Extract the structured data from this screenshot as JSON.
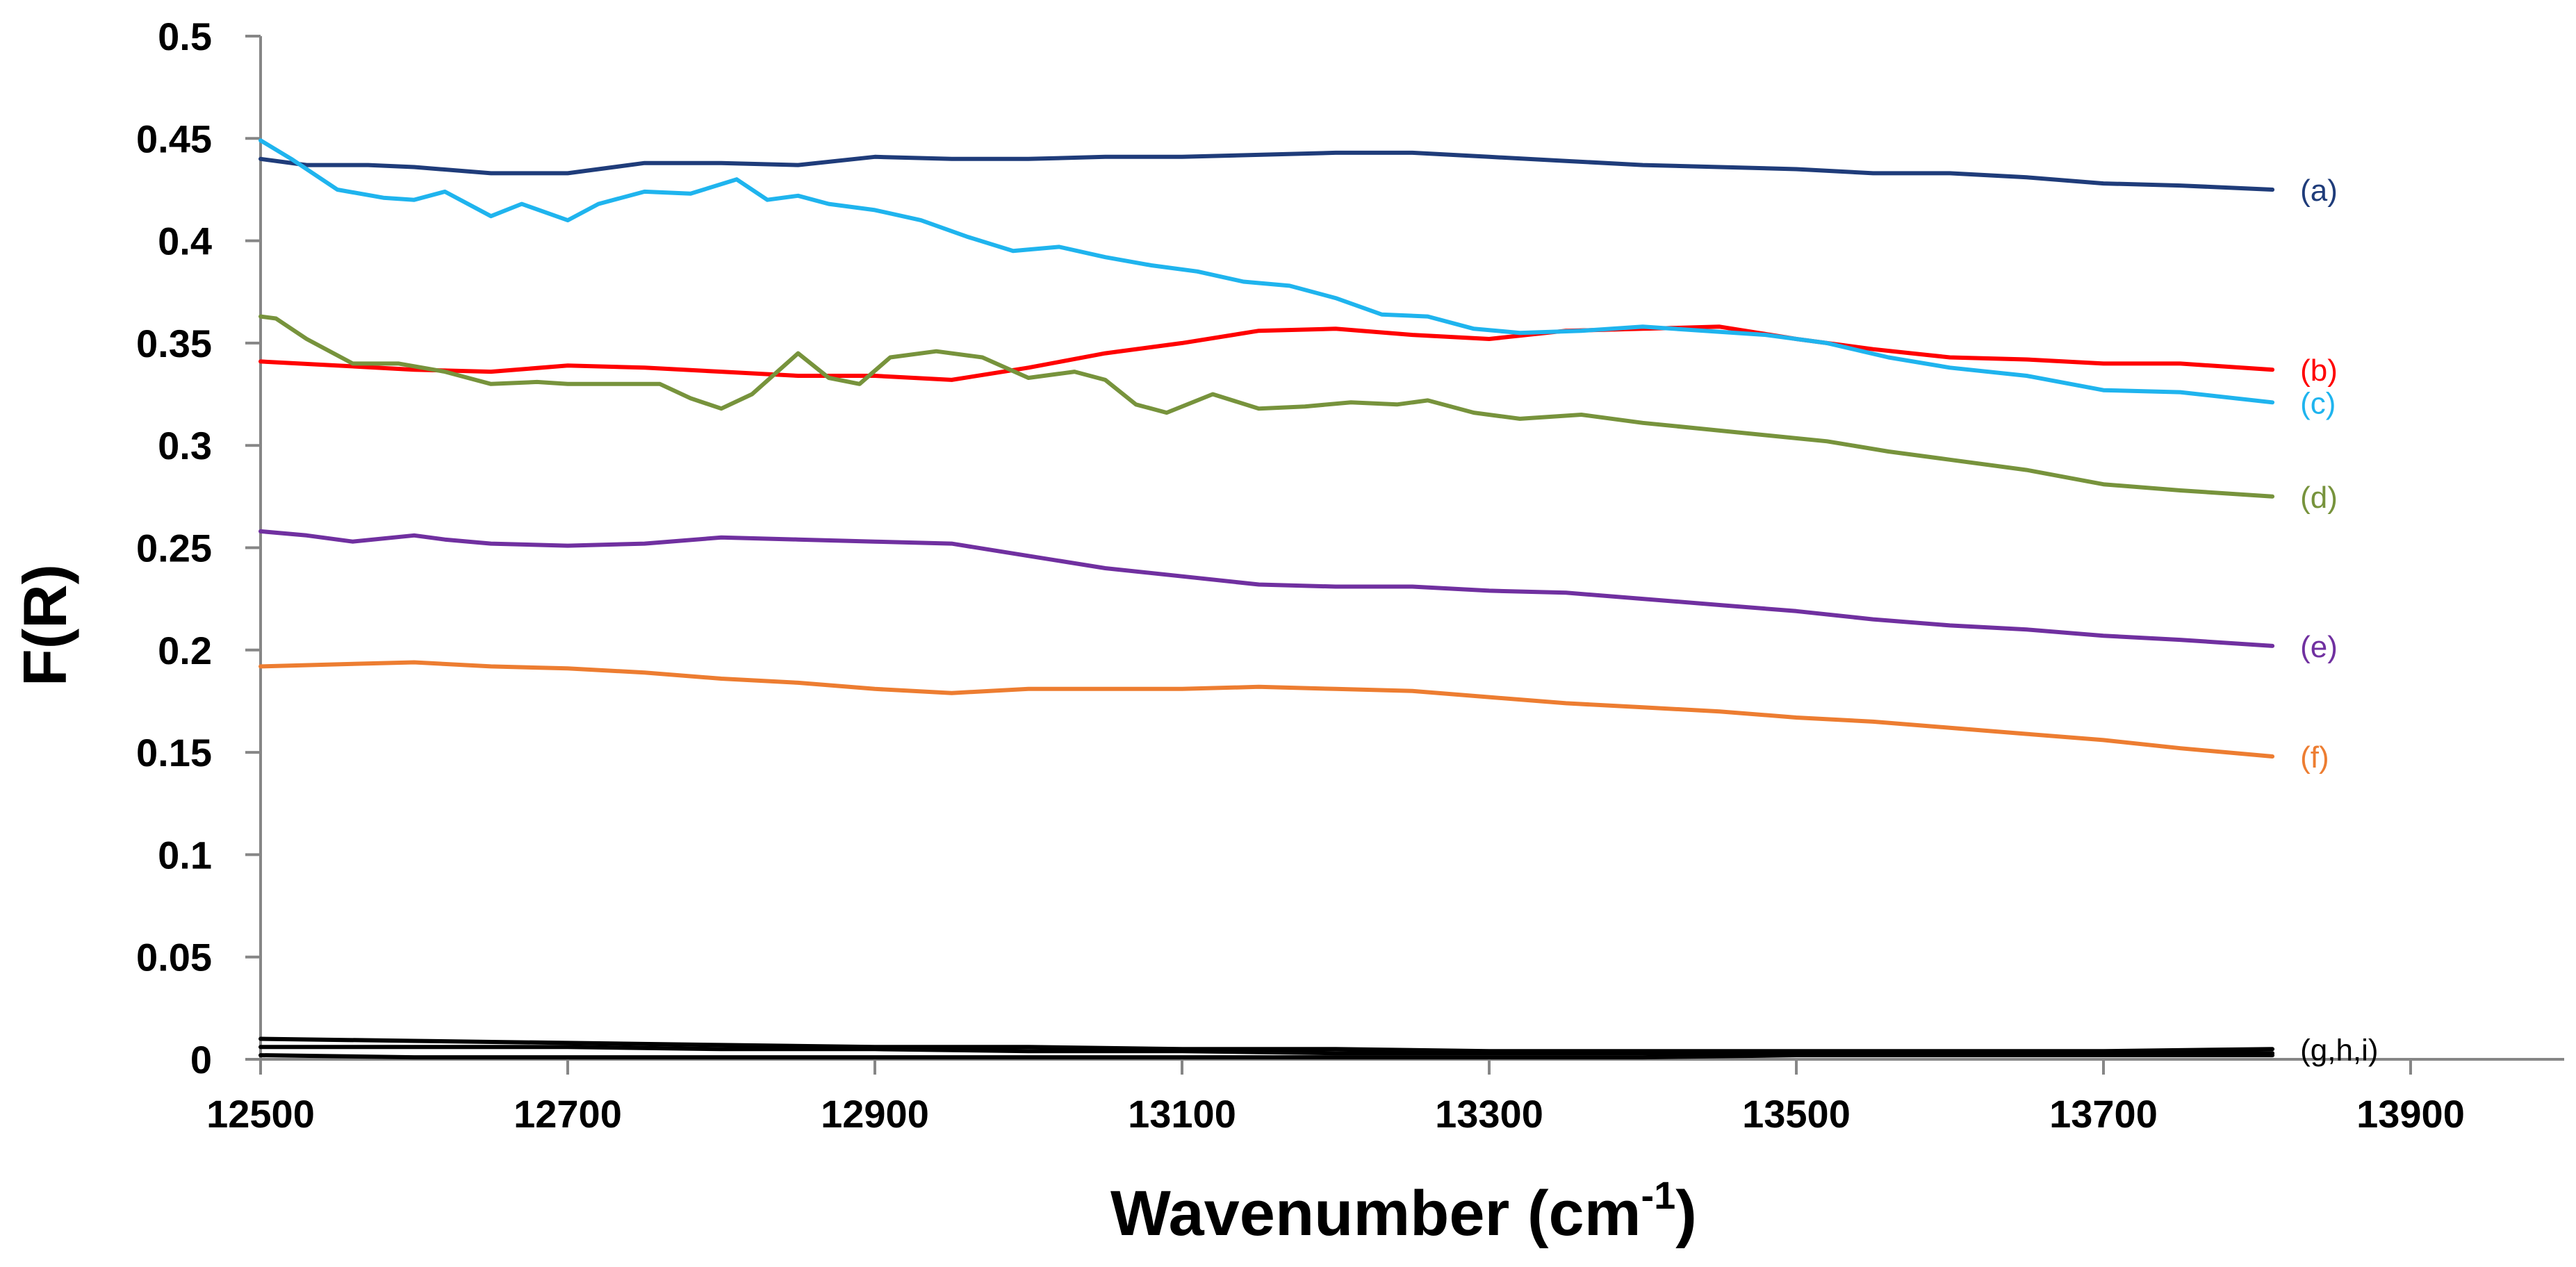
{
  "chart_data": {
    "type": "line",
    "title": "",
    "xlabel": "Wavenumber (cm",
    "xlabel_sup": "-1",
    "xlabel_close": ")",
    "ylabel": "F(R)",
    "xlim": [
      12500,
      14000
    ],
    "ylim": [
      0,
      0.5
    ],
    "xticks": [
      12500,
      12700,
      12900,
      13100,
      13300,
      13500,
      13700,
      13900
    ],
    "yticks": [
      0,
      0.05,
      0.1,
      0.15,
      0.2,
      0.25,
      0.3,
      0.35,
      0.4,
      0.45,
      0.5
    ],
    "grid": false,
    "legend": "inline-right",
    "series": [
      {
        "name": "(a)",
        "color": "#1f3c7a",
        "x": [
          12500,
          12530,
          12570,
          12600,
          12650,
          12700,
          12750,
          12800,
          12850,
          12900,
          12950,
          13000,
          13050,
          13100,
          13150,
          13200,
          13250,
          13300,
          13350,
          13400,
          13450,
          13500,
          13550,
          13600,
          13650,
          13700,
          13750,
          13810
        ],
        "y": [
          0.44,
          0.437,
          0.437,
          0.436,
          0.433,
          0.433,
          0.438,
          0.438,
          0.437,
          0.441,
          0.44,
          0.44,
          0.441,
          0.441,
          0.442,
          0.443,
          0.443,
          0.441,
          0.439,
          0.437,
          0.436,
          0.435,
          0.433,
          0.433,
          0.431,
          0.428,
          0.427,
          0.425
        ]
      },
      {
        "name": "(b)",
        "color": "#ff0000",
        "x": [
          12500,
          12550,
          12600,
          12650,
          12700,
          12750,
          12800,
          12850,
          12900,
          12950,
          13000,
          13050,
          13100,
          13150,
          13200,
          13250,
          13300,
          13350,
          13400,
          13450,
          13500,
          13550,
          13600,
          13650,
          13700,
          13750,
          13810
        ],
        "y": [
          0.341,
          0.339,
          0.337,
          0.336,
          0.339,
          0.338,
          0.336,
          0.334,
          0.334,
          0.332,
          0.338,
          0.345,
          0.35,
          0.356,
          0.357,
          0.354,
          0.352,
          0.356,
          0.357,
          0.358,
          0.352,
          0.347,
          0.343,
          0.342,
          0.34,
          0.34,
          0.337
        ]
      },
      {
        "name": "(c)",
        "color": "#1fb4ee",
        "x": [
          12500,
          12520,
          12550,
          12580,
          12600,
          12620,
          12650,
          12670,
          12700,
          12720,
          12750,
          12780,
          12810,
          12830,
          12850,
          12870,
          12900,
          12930,
          12960,
          12990,
          13020,
          13050,
          13080,
          13110,
          13140,
          13170,
          13200,
          13230,
          13260,
          13290,
          13320,
          13360,
          13400,
          13440,
          13480,
          13520,
          13560,
          13600,
          13650,
          13700,
          13750,
          13810
        ],
        "y": [
          0.449,
          0.44,
          0.425,
          0.421,
          0.42,
          0.424,
          0.412,
          0.418,
          0.41,
          0.418,
          0.424,
          0.423,
          0.43,
          0.42,
          0.422,
          0.418,
          0.415,
          0.41,
          0.402,
          0.395,
          0.397,
          0.392,
          0.388,
          0.385,
          0.38,
          0.378,
          0.372,
          0.364,
          0.363,
          0.357,
          0.355,
          0.356,
          0.358,
          0.356,
          0.354,
          0.35,
          0.343,
          0.338,
          0.334,
          0.327,
          0.326,
          0.321
        ]
      },
      {
        "name": "(d)",
        "color": "#77933c",
        "x": [
          12500,
          12510,
          12530,
          12560,
          12590,
          12620,
          12650,
          12680,
          12700,
          12730,
          12760,
          12780,
          12800,
          12820,
          12850,
          12870,
          12890,
          12910,
          12940,
          12970,
          13000,
          13030,
          13050,
          13070,
          13090,
          13120,
          13150,
          13180,
          13210,
          13240,
          13260,
          13290,
          13320,
          13360,
          13400,
          13440,
          13480,
          13520,
          13560,
          13600,
          13650,
          13700,
          13750,
          13810
        ],
        "y": [
          0.363,
          0.362,
          0.352,
          0.34,
          0.34,
          0.336,
          0.33,
          0.331,
          0.33,
          0.33,
          0.33,
          0.323,
          0.318,
          0.325,
          0.345,
          0.333,
          0.33,
          0.343,
          0.346,
          0.343,
          0.333,
          0.336,
          0.332,
          0.32,
          0.316,
          0.325,
          0.318,
          0.319,
          0.321,
          0.32,
          0.322,
          0.316,
          0.313,
          0.315,
          0.311,
          0.308,
          0.305,
          0.302,
          0.297,
          0.293,
          0.288,
          0.281,
          0.278,
          0.275
        ]
      },
      {
        "name": "(e)",
        "color": "#7030a0",
        "x": [
          12500,
          12530,
          12560,
          12600,
          12620,
          12650,
          12700,
          12750,
          12800,
          12850,
          12900,
          12950,
          13000,
          13050,
          13100,
          13150,
          13200,
          13250,
          13300,
          13350,
          13400,
          13450,
          13500,
          13550,
          13600,
          13650,
          13700,
          13750,
          13810
        ],
        "y": [
          0.258,
          0.256,
          0.253,
          0.256,
          0.254,
          0.252,
          0.251,
          0.252,
          0.255,
          0.254,
          0.253,
          0.252,
          0.246,
          0.24,
          0.236,
          0.232,
          0.231,
          0.231,
          0.229,
          0.228,
          0.225,
          0.222,
          0.219,
          0.215,
          0.212,
          0.21,
          0.207,
          0.205,
          0.202
        ]
      },
      {
        "name": "(f)",
        "color": "#ed7d31",
        "x": [
          12500,
          12550,
          12600,
          12650,
          12700,
          12750,
          12800,
          12850,
          12900,
          12950,
          13000,
          13050,
          13100,
          13150,
          13200,
          13250,
          13300,
          13350,
          13400,
          13450,
          13500,
          13550,
          13600,
          13650,
          13700,
          13750,
          13810
        ],
        "y": [
          0.192,
          0.193,
          0.194,
          0.192,
          0.191,
          0.189,
          0.186,
          0.184,
          0.181,
          0.179,
          0.181,
          0.181,
          0.181,
          0.182,
          0.181,
          0.18,
          0.177,
          0.174,
          0.172,
          0.17,
          0.167,
          0.165,
          0.162,
          0.159,
          0.156,
          0.152,
          0.148
        ]
      },
      {
        "name": "(g,h,i)",
        "color": "#000000",
        "x": [
          12500,
          12600,
          12700,
          12800,
          12900,
          13000,
          13100,
          13200,
          13300,
          13400,
          13500,
          13600,
          13700,
          13810
        ],
        "y": [
          0.01,
          0.009,
          0.008,
          0.007,
          0.006,
          0.006,
          0.005,
          0.005,
          0.004,
          0.004,
          0.004,
          0.004,
          0.004,
          0.005
        ]
      },
      {
        "name": "",
        "color": "#000000",
        "x": [
          12500,
          12600,
          12700,
          12800,
          12900,
          13000,
          13100,
          13200,
          13300,
          13400,
          13500,
          13600,
          13700,
          13810
        ],
        "y": [
          0.006,
          0.006,
          0.006,
          0.005,
          0.005,
          0.004,
          0.004,
          0.003,
          0.003,
          0.003,
          0.003,
          0.003,
          0.003,
          0.003
        ]
      },
      {
        "name": "",
        "color": "#000000",
        "x": [
          12500,
          12600,
          12700,
          12800,
          12900,
          13000,
          13100,
          13200,
          13300,
          13400,
          13500,
          13600,
          13700,
          13810
        ],
        "y": [
          0.002,
          0.001,
          0.001,
          0.001,
          0.001,
          0.001,
          0.001,
          0.001,
          0.001,
          0.001,
          0.002,
          0.002,
          0.002,
          0.002
        ]
      }
    ]
  }
}
